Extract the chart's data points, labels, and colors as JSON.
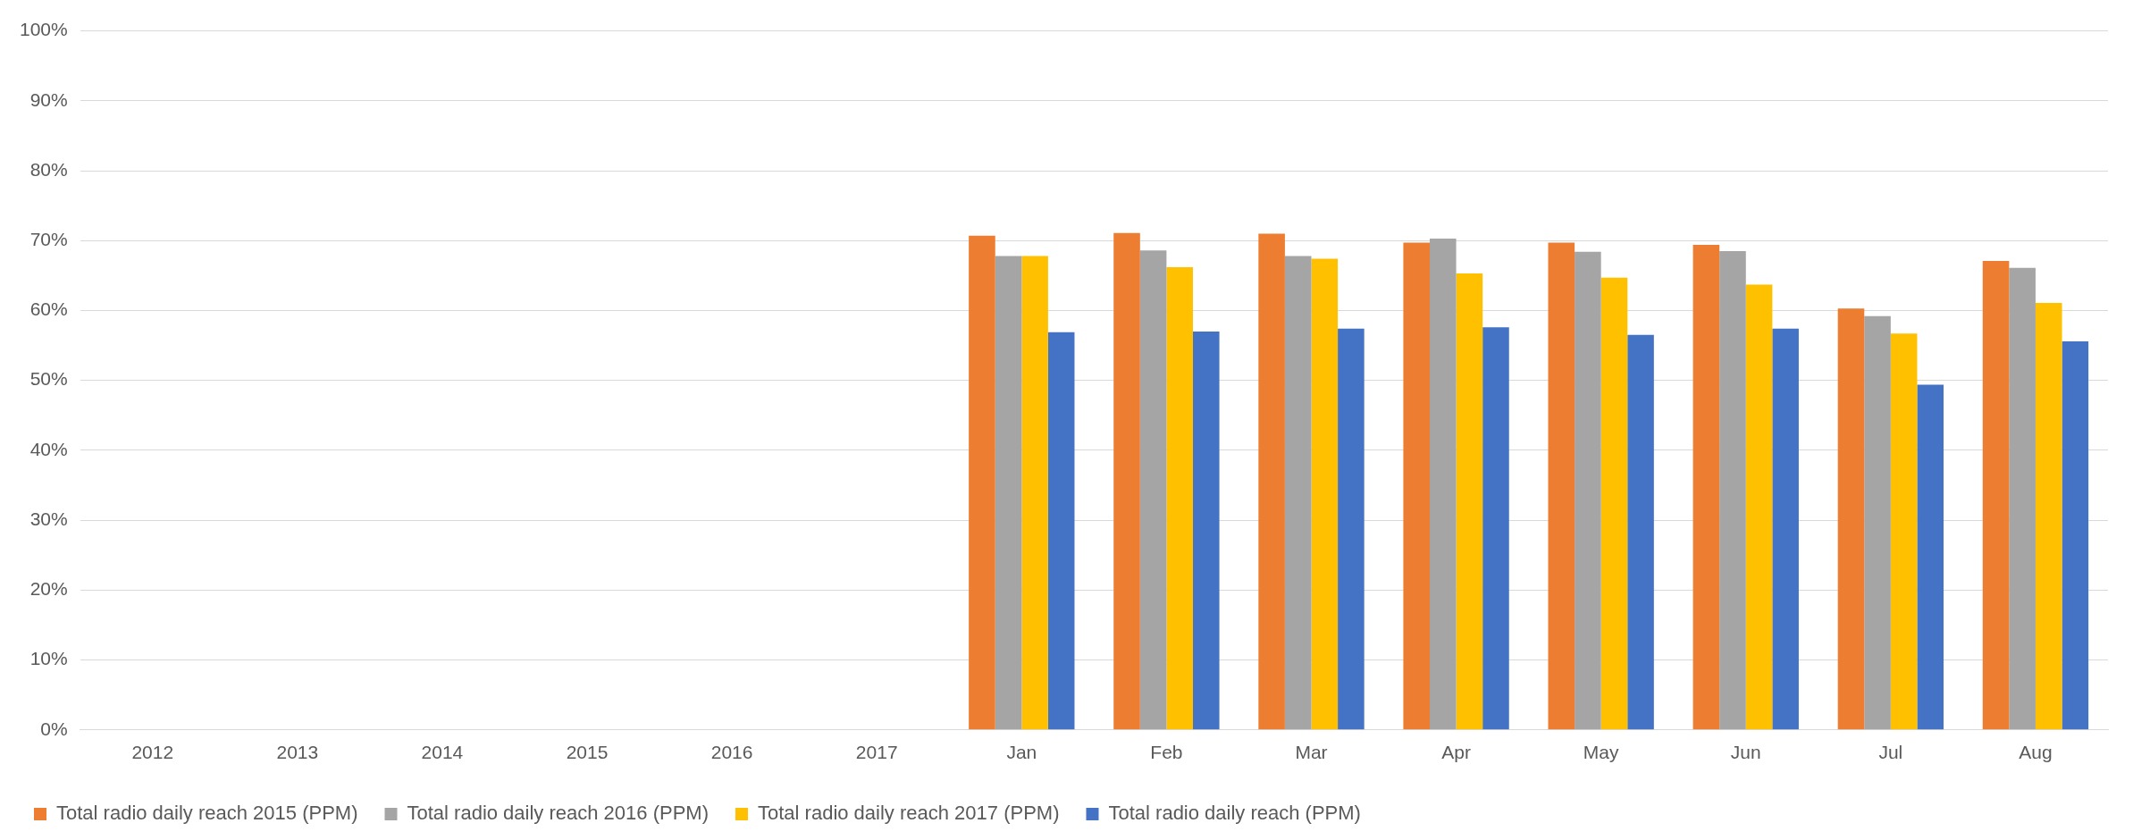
{
  "chart_data": {
    "type": "bar",
    "categories": [
      "2012",
      "2013",
      "2014",
      "2015",
      "2016",
      "2017",
      "Jan",
      "Feb",
      "Mar",
      "Apr",
      "May",
      "Jun",
      "Jul",
      "Aug"
    ],
    "series": [
      {
        "name": "Total radio daily reach 2015 (PPM)",
        "color": "#ed7d31",
        "values": [
          null,
          null,
          null,
          null,
          null,
          null,
          70.7,
          71.1,
          71.0,
          69.7,
          69.7,
          69.4,
          60.3,
          67.1
        ]
      },
      {
        "name": "Total radio daily reach 2016 (PPM)",
        "color": "#a5a5a5",
        "values": [
          null,
          null,
          null,
          null,
          null,
          null,
          67.8,
          68.6,
          67.8,
          70.3,
          68.4,
          68.5,
          59.2,
          66.1
        ]
      },
      {
        "name": "Total radio daily reach 2017 (PPM)",
        "color": "#ffc000",
        "values": [
          null,
          null,
          null,
          null,
          null,
          null,
          67.8,
          66.2,
          67.4,
          65.3,
          64.7,
          63.7,
          56.7,
          61.1
        ]
      },
      {
        "name": "Total radio daily reach (PPM)",
        "color": "#4472c4",
        "values": [
          null,
          null,
          null,
          null,
          null,
          null,
          56.9,
          57.0,
          57.4,
          57.6,
          56.5,
          57.4,
          49.4,
          55.6
        ]
      }
    ],
    "ylim": [
      0,
      100
    ],
    "yticks": [
      {
        "value": 0,
        "label": "0%"
      },
      {
        "value": 10,
        "label": "10%"
      },
      {
        "value": 20,
        "label": "20%"
      },
      {
        "value": 30,
        "label": "30%"
      },
      {
        "value": 40,
        "label": "40%"
      },
      {
        "value": 50,
        "label": "50%"
      },
      {
        "value": 60,
        "label": "60%"
      },
      {
        "value": 70,
        "label": "70%"
      },
      {
        "value": 80,
        "label": "80%"
      },
      {
        "value": 90,
        "label": "90%"
      },
      {
        "value": 100,
        "label": "100%"
      }
    ],
    "grid": "y",
    "legend": "bottom"
  }
}
